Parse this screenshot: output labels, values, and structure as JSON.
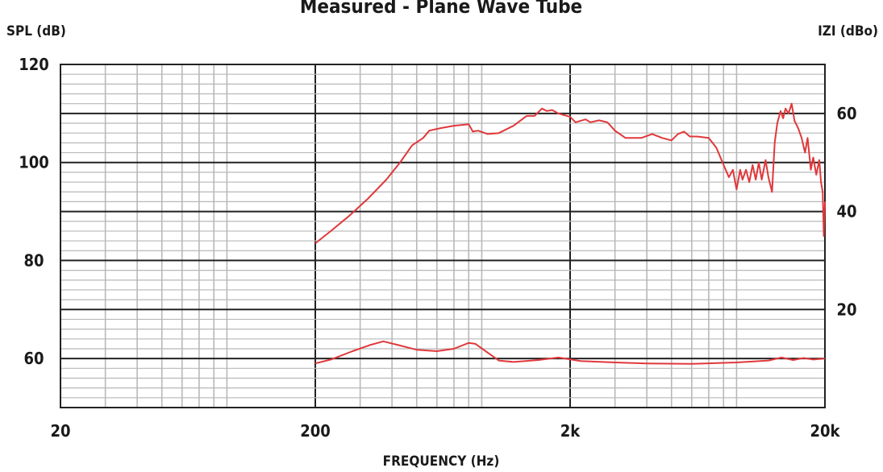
{
  "chart_data": {
    "type": "line",
    "title": "Measured - Plane Wave Tube",
    "xlabel": "FREQUENCY (Hz)",
    "ylabel_left": "SPL (dB)",
    "ylabel_right": "IZI (dBo)",
    "x_scale": "log",
    "xlim": [
      20,
      20000
    ],
    "ylim_left": [
      50,
      120
    ],
    "ylim_right": [
      0,
      70
    ],
    "grid": true,
    "colors": {
      "series": "#e0383b",
      "major_grid": "#222222",
      "minor_grid": "#b8b8b8"
    },
    "x_ticks": [
      {
        "value": 20,
        "label": "20"
      },
      {
        "value": 200,
        "label": "200"
      },
      {
        "value": 2000,
        "label": "2k"
      },
      {
        "value": 20000,
        "label": "20k"
      }
    ],
    "y_left_ticks": [
      {
        "value": 120,
        "label": "120"
      },
      {
        "value": 100,
        "label": "100"
      },
      {
        "value": 80,
        "label": "80"
      },
      {
        "value": 60,
        "label": "60"
      }
    ],
    "y_right_ticks": [
      {
        "value": 60,
        "label": "60"
      },
      {
        "value": 40,
        "label": "40"
      },
      {
        "value": 20,
        "label": "20"
      }
    ],
    "series": [
      {
        "axis": "left",
        "points": [
          [
            200,
            83.5
          ],
          [
            230,
            86
          ],
          [
            270,
            89
          ],
          [
            320,
            92.5
          ],
          [
            380,
            96.5
          ],
          [
            430,
            100
          ],
          [
            480,
            103.5
          ],
          [
            530,
            105
          ],
          [
            560,
            106.5
          ],
          [
            620,
            107
          ],
          [
            700,
            107.5
          ],
          [
            800,
            107.8
          ],
          [
            830,
            106.3
          ],
          [
            870,
            106.5
          ],
          [
            950,
            105.8
          ],
          [
            1050,
            106
          ],
          [
            1200,
            107.5
          ],
          [
            1350,
            109.5
          ],
          [
            1450,
            109.5
          ],
          [
            1550,
            111
          ],
          [
            1620,
            110.5
          ],
          [
            1700,
            110.7
          ],
          [
            1800,
            110
          ],
          [
            2000,
            109.3
          ],
          [
            2100,
            108.2
          ],
          [
            2300,
            108.8
          ],
          [
            2400,
            108.2
          ],
          [
            2600,
            108.6
          ],
          [
            2800,
            108.2
          ],
          [
            3000,
            106.5
          ],
          [
            3300,
            105
          ],
          [
            3800,
            105
          ],
          [
            4200,
            105.8
          ],
          [
            4600,
            105
          ],
          [
            5000,
            104.5
          ],
          [
            5300,
            105.8
          ],
          [
            5600,
            106.3
          ],
          [
            5900,
            105.3
          ],
          [
            6300,
            105.3
          ],
          [
            7000,
            105
          ],
          [
            7500,
            103
          ],
          [
            8000,
            99.5
          ],
          [
            8400,
            97
          ],
          [
            8700,
            98.5
          ],
          [
            9000,
            94.5
          ],
          [
            9300,
            98.5
          ],
          [
            9500,
            96.5
          ],
          [
            9800,
            98.5
          ],
          [
            10100,
            96
          ],
          [
            10400,
            99.5
          ],
          [
            10700,
            96.5
          ],
          [
            11000,
            100
          ],
          [
            11300,
            96.5
          ],
          [
            11700,
            100.5
          ],
          [
            12000,
            97
          ],
          [
            12400,
            94
          ],
          [
            12700,
            104
          ],
          [
            13000,
            108
          ],
          [
            13400,
            110.5
          ],
          [
            13700,
            109
          ],
          [
            14000,
            111
          ],
          [
            14400,
            110
          ],
          [
            14800,
            112
          ],
          [
            15200,
            108.5
          ],
          [
            15700,
            107
          ],
          [
            16200,
            105
          ],
          [
            16700,
            102
          ],
          [
            17100,
            105
          ],
          [
            17600,
            98.5
          ],
          [
            18000,
            101
          ],
          [
            18500,
            97.5
          ],
          [
            19000,
            100.5
          ],
          [
            19300,
            96
          ],
          [
            19600,
            94
          ],
          [
            19800,
            85
          ],
          [
            20000,
            92
          ]
        ]
      },
      {
        "axis": "left",
        "points": [
          [
            200,
            59
          ],
          [
            230,
            59.8
          ],
          [
            280,
            61.5
          ],
          [
            330,
            62.8
          ],
          [
            370,
            63.5
          ],
          [
            420,
            62.8
          ],
          [
            500,
            61.8
          ],
          [
            600,
            61.5
          ],
          [
            700,
            62
          ],
          [
            800,
            63.2
          ],
          [
            850,
            63
          ],
          [
            950,
            61.2
          ],
          [
            1050,
            59.6
          ],
          [
            1200,
            59.3
          ],
          [
            1500,
            59.7
          ],
          [
            1800,
            60.2
          ],
          [
            2200,
            59.5
          ],
          [
            3000,
            59.2
          ],
          [
            4000,
            59
          ],
          [
            6000,
            58.9
          ],
          [
            9000,
            59.2
          ],
          [
            12000,
            59.6
          ],
          [
            13500,
            60.2
          ],
          [
            15000,
            59.7
          ],
          [
            16500,
            60.1
          ],
          [
            18000,
            59.8
          ],
          [
            20000,
            60
          ]
        ]
      }
    ]
  }
}
